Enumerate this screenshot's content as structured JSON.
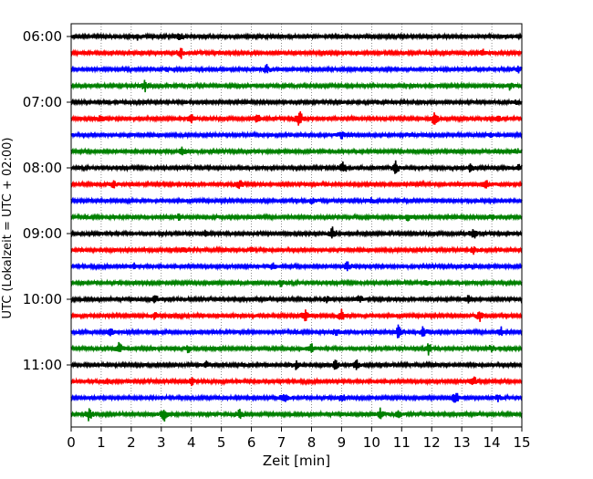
{
  "chart_data": {
    "type": "line",
    "title": "",
    "xlabel": "Zeit  [min]",
    "ylabel": "UTC (Lokalzeit = UTC + 02:00)",
    "xlim": [
      0,
      15
    ],
    "x_ticks": [
      "0",
      "1",
      "2",
      "3",
      "4",
      "5",
      "6",
      "7",
      "8",
      "9",
      "10",
      "11",
      "12",
      "13",
      "14",
      "15"
    ],
    "y_tick_labels": [
      "06:00",
      "07:00",
      "08:00",
      "09:00",
      "10:00",
      "11:00"
    ],
    "grid": "vertical dotted lines at each minute",
    "legend": "none",
    "colors_cycle": [
      "#000000",
      "#ff0000",
      "#0000ff",
      "#008000"
    ],
    "traces": [
      {
        "label": "06:00",
        "color": "#000000",
        "events": [
          {
            "x": 3.6,
            "amp": 0.35
          },
          {
            "x": 2.2,
            "amp": 0.2
          },
          {
            "x": 14.5,
            "amp": 0.2
          }
        ]
      },
      {
        "label": "06:15",
        "color": "#ff0000",
        "events": [
          {
            "x": 3.65,
            "amp": 0.45
          },
          {
            "x": 13.7,
            "amp": 0.3
          }
        ]
      },
      {
        "label": "06:30",
        "color": "#0000ff",
        "events": [
          {
            "x": 6.5,
            "amp": 0.35
          },
          {
            "x": 14.9,
            "amp": 0.25
          },
          {
            "x": 3.2,
            "amp": 0.15
          }
        ]
      },
      {
        "label": "06:45",
        "color": "#008000",
        "events": [
          {
            "x": 2.45,
            "amp": 0.45
          },
          {
            "x": 14.6,
            "amp": 0.35
          }
        ]
      },
      {
        "label": "07:00",
        "color": "#000000",
        "events": [
          {
            "x": 10.2,
            "amp": 0.25
          },
          {
            "x": 14.8,
            "amp": 0.2
          }
        ]
      },
      {
        "label": "07:15",
        "color": "#ff0000",
        "events": [
          {
            "x": 7.6,
            "amp": 0.7
          },
          {
            "x": 12.1,
            "amp": 0.6
          },
          {
            "x": 4.0,
            "amp": 0.4
          },
          {
            "x": 1.0,
            "amp": 0.35
          },
          {
            "x": 14.2,
            "amp": 0.3
          },
          {
            "x": 6.2,
            "amp": 0.3
          }
        ]
      },
      {
        "label": "07:30",
        "color": "#0000ff",
        "events": [
          {
            "x": 9.0,
            "amp": 0.3
          },
          {
            "x": 11.3,
            "amp": 0.2
          },
          {
            "x": 14.0,
            "amp": 0.2
          }
        ]
      },
      {
        "label": "07:45",
        "color": "#008000",
        "events": [
          {
            "x": 3.7,
            "amp": 0.3
          },
          {
            "x": 14.8,
            "amp": 0.25
          }
        ]
      },
      {
        "label": "08:00",
        "color": "#000000",
        "events": [
          {
            "x": 9.05,
            "amp": 0.55
          },
          {
            "x": 10.8,
            "amp": 0.5
          },
          {
            "x": 13.3,
            "amp": 0.4
          },
          {
            "x": 14.9,
            "amp": 0.3
          }
        ]
      },
      {
        "label": "08:15",
        "color": "#ff0000",
        "events": [
          {
            "x": 5.6,
            "amp": 0.45
          },
          {
            "x": 1.4,
            "amp": 0.3
          },
          {
            "x": 13.8,
            "amp": 0.3
          }
        ]
      },
      {
        "label": "08:30",
        "color": "#0000ff",
        "events": [
          {
            "x": 8.0,
            "amp": 0.25
          },
          {
            "x": 10.0,
            "amp": 0.2
          }
        ]
      },
      {
        "label": "08:45",
        "color": "#008000",
        "events": [
          {
            "x": 3.6,
            "amp": 0.3
          },
          {
            "x": 11.2,
            "amp": 0.35
          },
          {
            "x": 14.0,
            "amp": 0.25
          }
        ]
      },
      {
        "label": "09:00",
        "color": "#000000",
        "events": [
          {
            "x": 8.7,
            "amp": 0.55
          },
          {
            "x": 13.4,
            "amp": 0.45
          },
          {
            "x": 4.5,
            "amp": 0.3
          }
        ]
      },
      {
        "label": "09:15",
        "color": "#ff0000",
        "events": [
          {
            "x": 13.4,
            "amp": 0.35
          },
          {
            "x": 3.8,
            "amp": 0.25
          },
          {
            "x": 6.0,
            "amp": 0.25
          }
        ]
      },
      {
        "label": "09:30",
        "color": "#0000ff",
        "events": [
          {
            "x": 9.2,
            "amp": 0.45
          },
          {
            "x": 6.7,
            "amp": 0.3
          },
          {
            "x": 2.1,
            "amp": 0.25
          },
          {
            "x": 13.3,
            "amp": 0.25
          }
        ]
      },
      {
        "label": "09:45",
        "color": "#008000",
        "events": [
          {
            "x": 7.0,
            "amp": 0.3
          },
          {
            "x": 11.8,
            "amp": 0.25
          }
        ]
      },
      {
        "label": "10:00",
        "color": "#000000",
        "events": [
          {
            "x": 2.8,
            "amp": 0.3
          },
          {
            "x": 9.6,
            "amp": 0.35
          },
          {
            "x": 13.2,
            "amp": 0.35
          },
          {
            "x": 8.5,
            "amp": 0.25
          }
        ]
      },
      {
        "label": "10:15",
        "color": "#ff0000",
        "events": [
          {
            "x": 7.8,
            "amp": 0.55
          },
          {
            "x": 9.0,
            "amp": 0.45
          },
          {
            "x": 13.6,
            "amp": 0.45
          },
          {
            "x": 2.8,
            "amp": 0.3
          }
        ]
      },
      {
        "label": "10:30",
        "color": "#0000ff",
        "events": [
          {
            "x": 10.9,
            "amp": 0.6
          },
          {
            "x": 11.7,
            "amp": 0.45
          },
          {
            "x": 14.3,
            "amp": 0.4
          },
          {
            "x": 1.3,
            "amp": 0.35
          },
          {
            "x": 8.8,
            "amp": 0.3
          }
        ]
      },
      {
        "label": "10:45",
        "color": "#008000",
        "events": [
          {
            "x": 1.6,
            "amp": 0.55
          },
          {
            "x": 11.9,
            "amp": 0.5
          },
          {
            "x": 8.0,
            "amp": 0.4
          },
          {
            "x": 3.9,
            "amp": 0.35
          },
          {
            "x": 14.0,
            "amp": 0.3
          }
        ]
      },
      {
        "label": "11:00",
        "color": "#000000",
        "events": [
          {
            "x": 7.5,
            "amp": 0.4
          },
          {
            "x": 8.8,
            "amp": 0.4
          },
          {
            "x": 9.5,
            "amp": 0.35
          },
          {
            "x": 4.5,
            "amp": 0.3
          }
        ]
      },
      {
        "label": "11:15",
        "color": "#ff0000",
        "events": [
          {
            "x": 4.0,
            "amp": 0.35
          },
          {
            "x": 13.4,
            "amp": 0.4
          },
          {
            "x": 1.2,
            "amp": 0.25
          }
        ]
      },
      {
        "label": "11:30",
        "color": "#0000ff",
        "events": [
          {
            "x": 12.8,
            "amp": 0.6
          },
          {
            "x": 7.1,
            "amp": 0.45
          },
          {
            "x": 9.0,
            "amp": 0.35
          },
          {
            "x": 14.2,
            "amp": 0.25
          }
        ]
      },
      {
        "label": "11:45",
        "color": "#008000",
        "events": [
          {
            "x": 0.6,
            "amp": 0.55
          },
          {
            "x": 3.1,
            "amp": 0.55
          },
          {
            "x": 5.6,
            "amp": 0.4
          },
          {
            "x": 10.3,
            "amp": 0.45
          },
          {
            "x": 10.9,
            "amp": 0.3
          }
        ]
      }
    ]
  }
}
